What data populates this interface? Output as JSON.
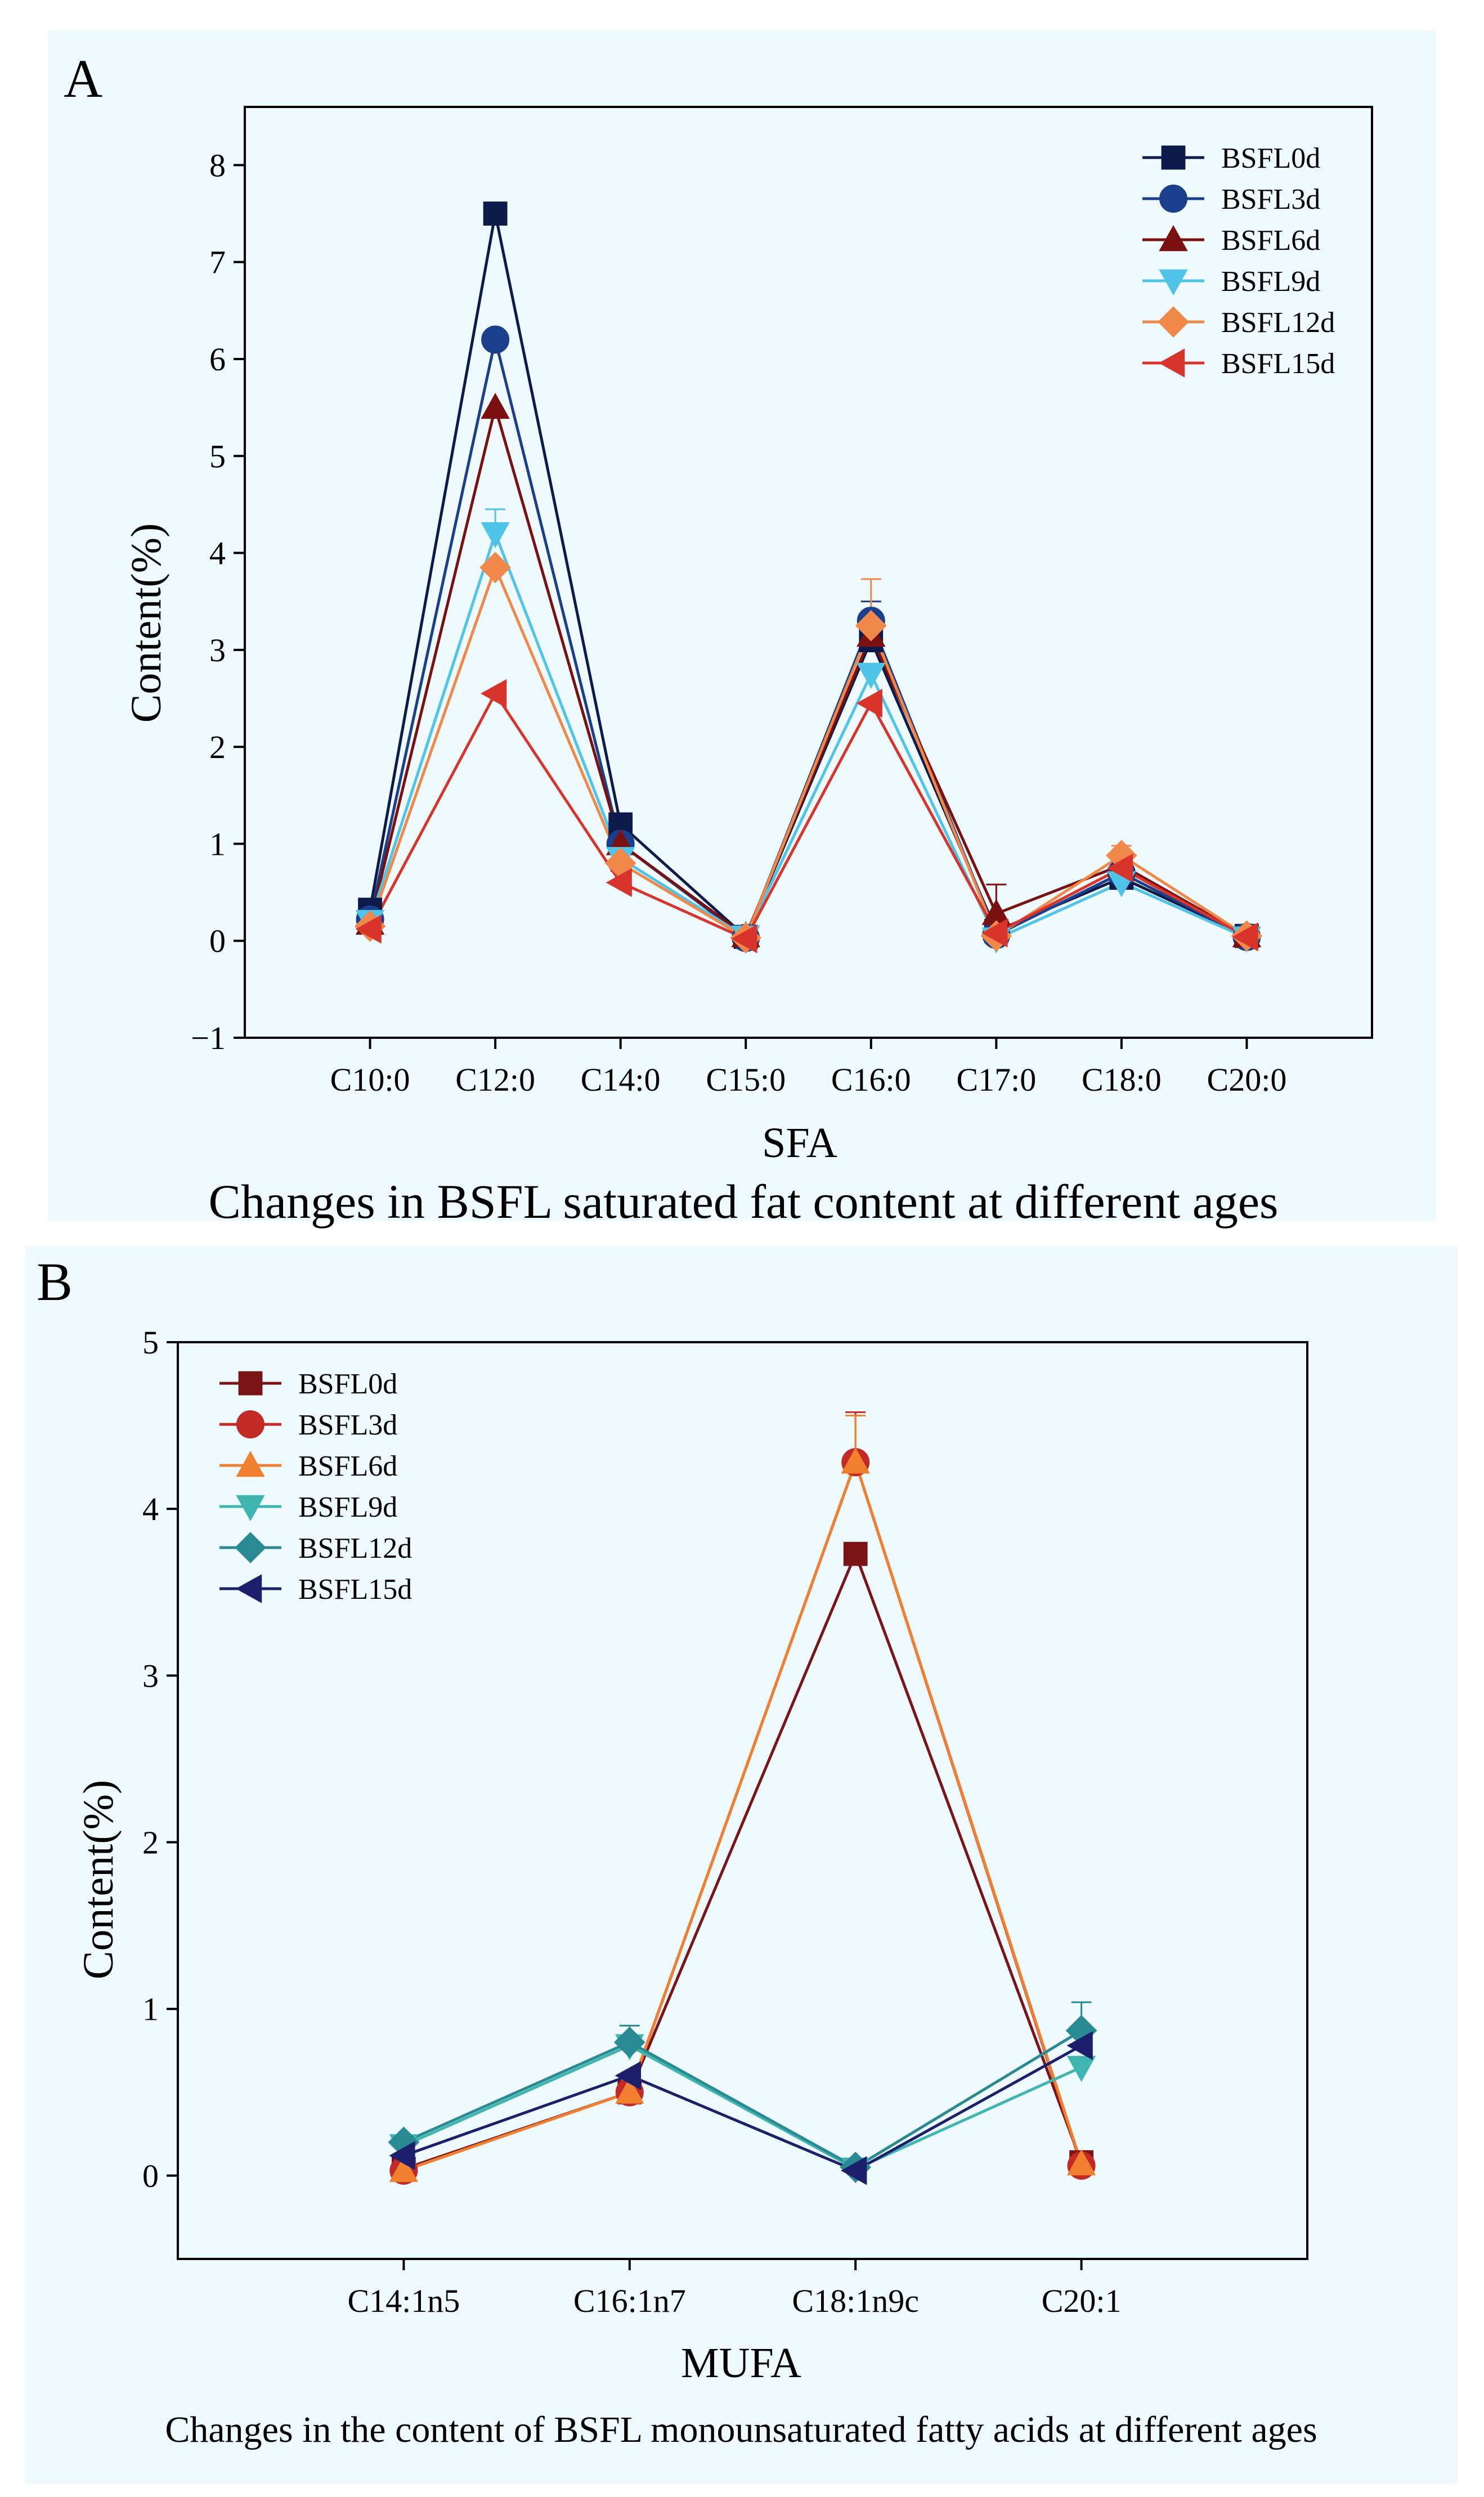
{
  "chart_data": [
    {
      "panel_label": "A",
      "type": "line",
      "caption": "Changes in BSFL saturated fat content at different ages",
      "xlabel": "SFA",
      "ylabel": "Content(%)",
      "categories": [
        "C10:0",
        "C12:0",
        "C14:0",
        "C15:0",
        "C16:0",
        "C17:0",
        "C18:0",
        "C20:0"
      ],
      "ylim": [
        -1,
        8.6
      ],
      "yticks": [
        -1,
        0,
        1,
        2,
        3,
        4,
        5,
        6,
        7,
        8
      ],
      "ytick_labels": [
        "−1",
        "0",
        "1",
        "2",
        "3",
        "4",
        "5",
        "6",
        "7",
        "8"
      ],
      "legend_position": "top-right",
      "series": [
        {
          "name": "BSFL0d",
          "color": "#0d1b4c",
          "marker": "square",
          "values": [
            0.32,
            7.5,
            1.2,
            0.04,
            3.1,
            0.1,
            0.65,
            0.05
          ],
          "errors": [
            0,
            0,
            0,
            0,
            0,
            0,
            0,
            0
          ]
        },
        {
          "name": "BSFL3d",
          "color": "#1a3f8c",
          "marker": "circle",
          "values": [
            0.22,
            6.2,
            1.0,
            0.03,
            3.3,
            0.06,
            0.7,
            0.04
          ],
          "errors": [
            0,
            0,
            0,
            0,
            0.2,
            0,
            0,
            0
          ]
        },
        {
          "name": "BSFL6d",
          "color": "#7a1010",
          "marker": "triangle-up",
          "values": [
            0.18,
            5.5,
            1.0,
            0.05,
            3.15,
            0.28,
            0.78,
            0.05
          ],
          "errors": [
            0,
            0,
            0,
            0,
            0,
            0.3,
            0,
            0
          ]
        },
        {
          "name": "BSFL9d",
          "color": "#4fc3e8",
          "marker": "triangle-down",
          "values": [
            0.2,
            4.2,
            0.85,
            0.04,
            2.75,
            0.02,
            0.6,
            0.03
          ],
          "errors": [
            0,
            0.25,
            0,
            0,
            0,
            0,
            0,
            0
          ]
        },
        {
          "name": "BSFL12d",
          "color": "#f0884a",
          "marker": "diamond",
          "values": [
            0.15,
            3.85,
            0.8,
            0.03,
            3.25,
            0.05,
            0.88,
            0.05
          ],
          "errors": [
            0,
            0,
            0,
            0,
            0.48,
            0,
            0.1,
            0
          ]
        },
        {
          "name": "BSFL15d",
          "color": "#d9342b",
          "marker": "triangle-left",
          "values": [
            0.12,
            2.55,
            0.6,
            0.02,
            2.45,
            0.08,
            0.75,
            0.04
          ],
          "errors": [
            0,
            0,
            0.12,
            0,
            0,
            0,
            0,
            0
          ]
        }
      ]
    },
    {
      "panel_label": "B",
      "type": "line",
      "caption": "Changes in the content of BSFL monounsaturated fatty acids at different ages",
      "xlabel": "MUFA",
      "ylabel": "Content(%)",
      "categories": [
        "C14:1n5",
        "C16:1n7",
        "C18:1n9c",
        "C20:1"
      ],
      "ylim": [
        -0.5,
        5
      ],
      "yticks": [
        0,
        1,
        2,
        3,
        4,
        5
      ],
      "ytick_labels": [
        "0",
        "1",
        "2",
        "3",
        "4",
        "5"
      ],
      "legend_position": "top-left",
      "series": [
        {
          "name": "BSFL0d",
          "color": "#7a1416",
          "marker": "square",
          "values": [
            0.04,
            0.5,
            3.73,
            0.08
          ],
          "errors": [
            0,
            0,
            0,
            0
          ]
        },
        {
          "name": "BSFL3d",
          "color": "#c42a25",
          "marker": "circle",
          "values": [
            0.03,
            0.5,
            4.28,
            0.06
          ],
          "errors": [
            0,
            0,
            0.3,
            0
          ]
        },
        {
          "name": "BSFL6d",
          "color": "#f08030",
          "marker": "triangle-up",
          "values": [
            0.03,
            0.5,
            4.28,
            0.07
          ],
          "errors": [
            0,
            0,
            0.28,
            0
          ]
        },
        {
          "name": "BSFL9d",
          "color": "#3fb5b0",
          "marker": "triangle-down",
          "values": [
            0.18,
            0.78,
            0.04,
            0.65
          ],
          "errors": [
            0,
            0,
            0,
            0
          ]
        },
        {
          "name": "BSFL12d",
          "color": "#2a8a94",
          "marker": "diamond",
          "values": [
            0.2,
            0.8,
            0.05,
            0.87
          ],
          "errors": [
            0,
            0.1,
            0,
            0.17
          ]
        },
        {
          "name": "BSFL15d",
          "color": "#1c1f6b",
          "marker": "triangle-left",
          "values": [
            0.12,
            0.6,
            0.03,
            0.78
          ],
          "errors": [
            0,
            0,
            0,
            0
          ]
        }
      ]
    }
  ]
}
